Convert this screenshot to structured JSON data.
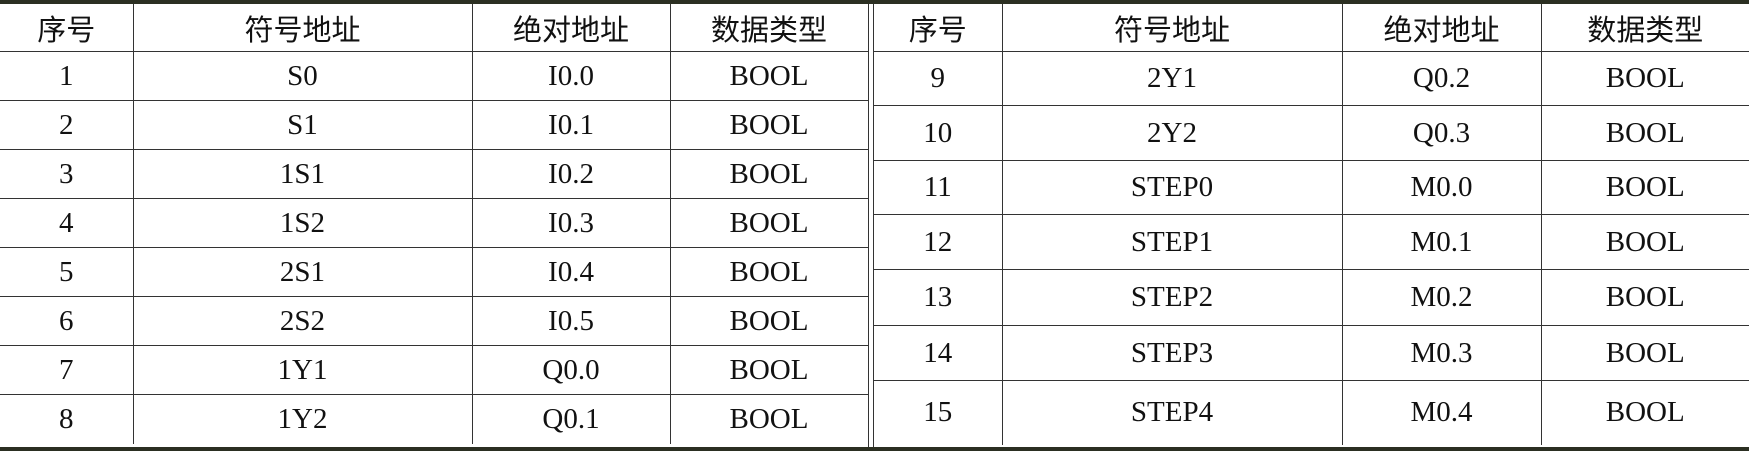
{
  "headers": [
    "序号",
    "符号地址",
    "绝对地址",
    "数据类型"
  ],
  "left_rows": [
    [
      "1",
      "S0",
      "I0.0",
      "BOOL"
    ],
    [
      "2",
      "S1",
      "I0.1",
      "BOOL"
    ],
    [
      "3",
      "1S1",
      "I0.2",
      "BOOL"
    ],
    [
      "4",
      "1S2",
      "I0.3",
      "BOOL"
    ],
    [
      "5",
      "2S1",
      "I0.4",
      "BOOL"
    ],
    [
      "6",
      "2S2",
      "I0.5",
      "BOOL"
    ],
    [
      "7",
      "1Y1",
      "Q0.0",
      "BOOL"
    ],
    [
      "8",
      "1Y2",
      "Q0.1",
      "BOOL"
    ]
  ],
  "right_rows": [
    [
      "9",
      "2Y1",
      "Q0.2",
      "BOOL"
    ],
    [
      "10",
      "2Y2",
      "Q0.3",
      "BOOL"
    ],
    [
      "11",
      "STEP0",
      "M0.0",
      "BOOL"
    ],
    [
      "12",
      "STEP1",
      "M0.1",
      "BOOL"
    ],
    [
      "13",
      "STEP2",
      "M0.2",
      "BOOL"
    ],
    [
      "14",
      "STEP3",
      "M0.3",
      "BOOL"
    ],
    [
      "15",
      "STEP4",
      "M0.4",
      "BOOL"
    ]
  ]
}
